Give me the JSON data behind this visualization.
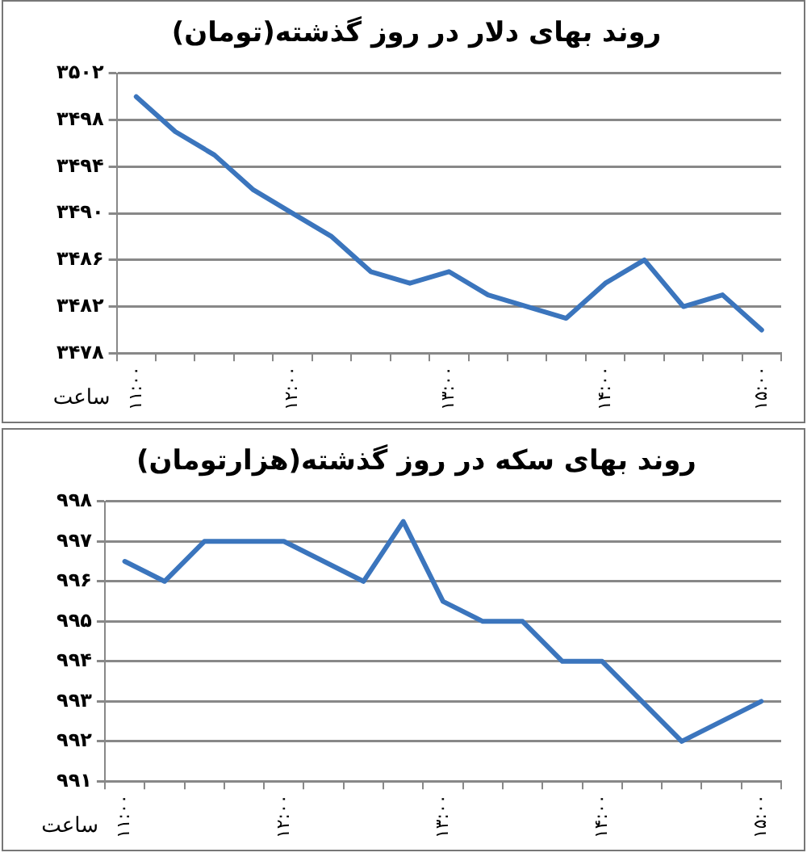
{
  "chart_data": [
    {
      "type": "line",
      "title": "روند بهای دلار در روز گذشته(تومان)",
      "xlabel": "ساعت",
      "categories": [
        "۱۱:۰۰",
        null,
        null,
        null,
        "۱۲:۰۰",
        null,
        null,
        null,
        "۱۳:۰۰",
        null,
        null,
        null,
        "۱۴:۰۰",
        null,
        null,
        null,
        "۱۵:۰۰"
      ],
      "series": [
        {
          "color": "#3b75bd",
          "values": [
            3500,
            3497,
            3495,
            3492,
            3490,
            3488,
            3485,
            3484,
            3485,
            3483,
            3482,
            3481,
            3484,
            3486,
            3482,
            3483,
            3480
          ]
        }
      ],
      "ylim": [
        3478,
        3502
      ],
      "yticks": [
        {
          "value": 3478,
          "label": "۳۴۷۸"
        },
        {
          "value": 3482,
          "label": "۳۴۸۲"
        },
        {
          "value": 3486,
          "label": "۳۴۸۶"
        },
        {
          "value": 3490,
          "label": "۳۴۹۰"
        },
        {
          "value": 3494,
          "label": "۳۴۹۴"
        },
        {
          "value": 3498,
          "label": "۳۴۹۸"
        },
        {
          "value": 3502,
          "label": "۳۵۰۲"
        }
      ],
      "grid": "y",
      "legend": false,
      "marker": "none",
      "line_style": "solid"
    },
    {
      "type": "line",
      "title": "روند بهای سکه در روز گذشته(هزارتومان)",
      "xlabel": "ساعت",
      "categories": [
        "۱۱:۰۰",
        null,
        null,
        null,
        "۱۲:۰۰",
        null,
        null,
        null,
        "۱۳:۰۰",
        null,
        null,
        null,
        "۱۴:۰۰",
        null,
        null,
        null,
        "۱۵:۰۰"
      ],
      "series": [
        {
          "color": "#3b75bd",
          "values": [
            996.5,
            996,
            997,
            997,
            997,
            996.5,
            996,
            997.5,
            995.5,
            995,
            995,
            994,
            994,
            993,
            992,
            992.5,
            993
          ]
        }
      ],
      "ylim": [
        991,
        998
      ],
      "yticks": [
        {
          "value": 991,
          "label": "۹۹۱"
        },
        {
          "value": 992,
          "label": "۹۹۲"
        },
        {
          "value": 993,
          "label": "۹۹۳"
        },
        {
          "value": 994,
          "label": "۹۹۴"
        },
        {
          "value": 995,
          "label": "۹۹۵"
        },
        {
          "value": 996,
          "label": "۹۹۶"
        },
        {
          "value": 997,
          "label": "۹۹۷"
        },
        {
          "value": 998,
          "label": "۹۹۸"
        }
      ],
      "grid": "y",
      "legend": false,
      "marker": "none",
      "line_style": "solid"
    }
  ]
}
